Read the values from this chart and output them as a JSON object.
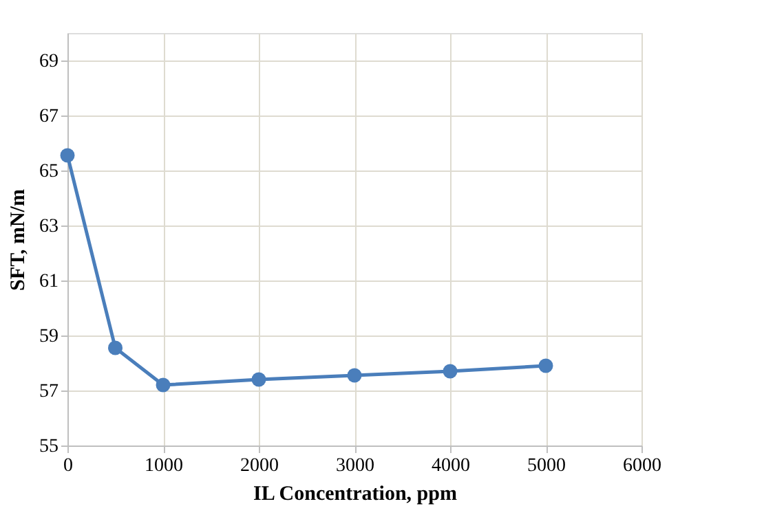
{
  "chart_data": {
    "type": "line",
    "xlabel": "IL Concentration, ppm",
    "ylabel": "SFT, mN/m",
    "x": [
      0,
      500,
      1000,
      2000,
      3000,
      4000,
      5000
    ],
    "series": [
      {
        "color": "#4a7ebb",
        "values": [
          65.55,
          58.55,
          57.2,
          57.4,
          57.55,
          57.7,
          57.9
        ]
      }
    ],
    "xlim": [
      0,
      6000
    ],
    "xticks": [
      0,
      1000,
      2000,
      3000,
      4000,
      5000,
      6000
    ],
    "ylim": [
      55,
      70
    ],
    "yticks": [
      55,
      57,
      59,
      61,
      63,
      65,
      67,
      69
    ],
    "grid": true,
    "marker": "circle",
    "line_style": "solid"
  }
}
